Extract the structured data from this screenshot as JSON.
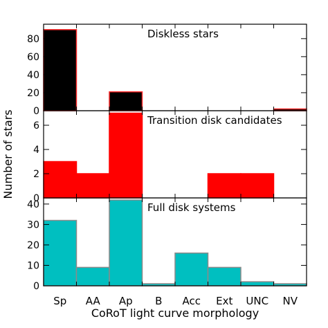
{
  "chart_data": {
    "type": "bar",
    "xlabel": "CoRoT light curve morphology",
    "ylabel": "Number of stars",
    "categories": [
      "Sp",
      "AA",
      "Ap",
      "B",
      "Acc",
      "Ext",
      "UNC",
      "NV"
    ],
    "panels": [
      {
        "title": "Diskless stars",
        "values": [
          90,
          0,
          21,
          0,
          0,
          0,
          0,
          2
        ],
        "ylim": [
          0,
          96
        ],
        "yticks": [
          0,
          20,
          40,
          60,
          80
        ],
        "fill": "#000000",
        "edge": "#ff2a2a"
      },
      {
        "title": "Transition disk candidates",
        "values": [
          3,
          2,
          7,
          0,
          0,
          2,
          2,
          0
        ],
        "ylim": [
          0,
          7.2
        ],
        "yticks": [
          0,
          2,
          4,
          6
        ],
        "fill": "#ff0000",
        "edge": "#ff0000"
      },
      {
        "title": "Full disk systems",
        "values": [
          32,
          9,
          42,
          1,
          16,
          9,
          2,
          1
        ],
        "ylim": [
          0,
          43
        ],
        "yticks": [
          0,
          10,
          20,
          30,
          40
        ],
        "fill": "#00bfc0",
        "edge": "#8a8a8a"
      }
    ]
  }
}
